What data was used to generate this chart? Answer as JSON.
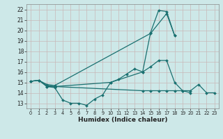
{
  "background_color": "#cde8e8",
  "grid_color": "#c0d8d8",
  "line_color": "#1a7070",
  "xlabel": "Humidex (Indice chaleur)",
  "xlim": [
    -0.5,
    23.5
  ],
  "ylim": [
    12.5,
    22.5
  ],
  "xticks": [
    0,
    1,
    2,
    3,
    4,
    5,
    6,
    7,
    8,
    9,
    10,
    11,
    12,
    13,
    14,
    15,
    16,
    17,
    18,
    19,
    20,
    21,
    22,
    23
  ],
  "yticks": [
    13,
    14,
    15,
    16,
    17,
    18,
    19,
    20,
    21,
    22
  ],
  "series": [
    {
      "x": [
        0,
        1,
        2,
        3,
        4,
        5,
        6,
        7,
        8,
        9,
        10,
        14,
        15,
        16,
        17,
        18
      ],
      "y": [
        15.1,
        15.2,
        14.6,
        14.5,
        13.3,
        13.0,
        13.0,
        12.8,
        13.4,
        13.8,
        15.0,
        16.0,
        19.8,
        21.9,
        21.8,
        19.5
      ]
    },
    {
      "x": [
        0,
        1,
        2,
        3,
        15,
        17,
        18
      ],
      "y": [
        15.1,
        15.2,
        14.8,
        14.7,
        19.7,
        21.6,
        19.5
      ]
    },
    {
      "x": [
        0,
        1,
        2,
        3,
        10,
        11,
        12,
        13,
        14,
        15,
        16,
        17,
        18,
        19,
        20
      ],
      "y": [
        15.1,
        15.2,
        14.7,
        14.6,
        15.0,
        15.3,
        15.8,
        16.3,
        16.0,
        16.5,
        17.1,
        17.1,
        15.0,
        14.2,
        14.0
      ]
    },
    {
      "x": [
        2,
        3,
        14,
        15,
        16,
        17,
        18,
        19,
        20,
        21,
        22,
        23
      ],
      "y": [
        14.6,
        14.6,
        14.2,
        14.2,
        14.2,
        14.2,
        14.2,
        14.2,
        14.2,
        14.8,
        14.0,
        14.0
      ]
    }
  ]
}
